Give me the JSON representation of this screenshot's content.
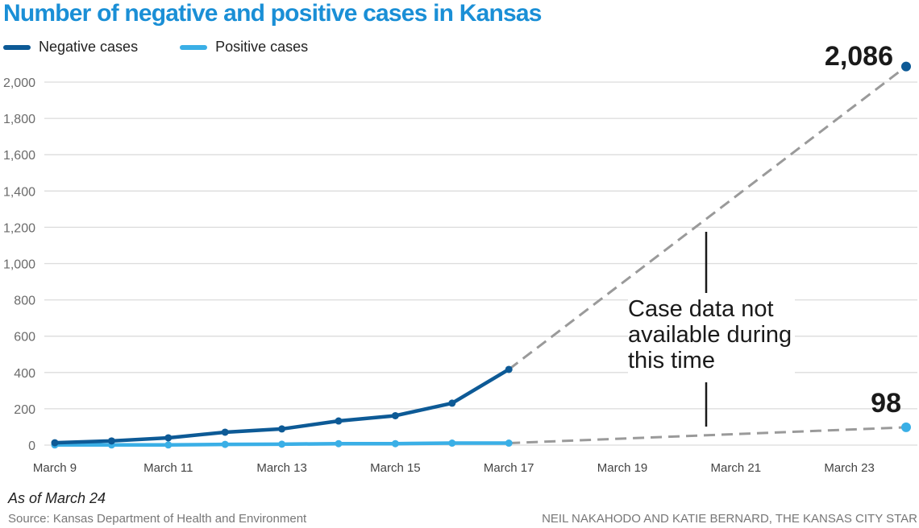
{
  "chart_data": {
    "type": "line",
    "title": "Number of negative and positive cases in Kansas",
    "xlabel": "",
    "ylabel": "",
    "x": [
      "March 9",
      "March 10",
      "March 11",
      "March 12",
      "March 13",
      "March 14",
      "March 15",
      "March 16",
      "March 17",
      "March 18",
      "March 19",
      "March 20",
      "March 21",
      "March 22",
      "March 23",
      "March 24"
    ],
    "x_tick_labels": [
      "March 9",
      "March 11",
      "March 13",
      "March 15",
      "March 17",
      "March 19",
      "March 21",
      "March 23"
    ],
    "y_tick_labels": [
      "0",
      "200",
      "400",
      "600",
      "800",
      "1,000",
      "1,200",
      "1,400",
      "1,600",
      "1,800",
      "2,000"
    ],
    "y_ticks": [
      0,
      200,
      400,
      600,
      800,
      1000,
      1200,
      1400,
      1600,
      1800,
      2000
    ],
    "ylim": [
      0,
      2000
    ],
    "grid": true,
    "legend_placement": "top-left",
    "series": [
      {
        "name": "Negative cases",
        "color": "#0d5a96",
        "observed_x_index": [
          0,
          1,
          2,
          3,
          4,
          5,
          6,
          7,
          8
        ],
        "values": [
          13,
          23,
          40,
          71,
          89,
          133,
          162,
          231,
          417
        ],
        "gap_to": {
          "x_index": 15,
          "value": 2086
        },
        "end_label": "2,086"
      },
      {
        "name": "Positive cases",
        "color": "#3aafe6",
        "observed_x_index": [
          0,
          1,
          2,
          3,
          4,
          5,
          6,
          7,
          8
        ],
        "values": [
          1,
          1,
          1,
          4,
          5,
          8,
          8,
          11,
          11
        ],
        "gap_to": {
          "x_index": 15,
          "value": 98
        },
        "end_label": "98"
      }
    ],
    "annotations": [
      {
        "text_lines": [
          "Case data not",
          "available during",
          "this time"
        ]
      }
    ],
    "gap_line_color": "#9a9a9a"
  },
  "footer": {
    "as_of": "As of March 24",
    "source": "Source: Kansas Department of Health and Environment",
    "credit": "NEIL NAKAHODO AND KATIE BERNARD, THE KANSAS CITY STAR"
  },
  "legend": {
    "items": [
      {
        "label": "Negative cases",
        "color": "#0d5a96"
      },
      {
        "label": "Positive cases",
        "color": "#3aafe6"
      }
    ]
  }
}
